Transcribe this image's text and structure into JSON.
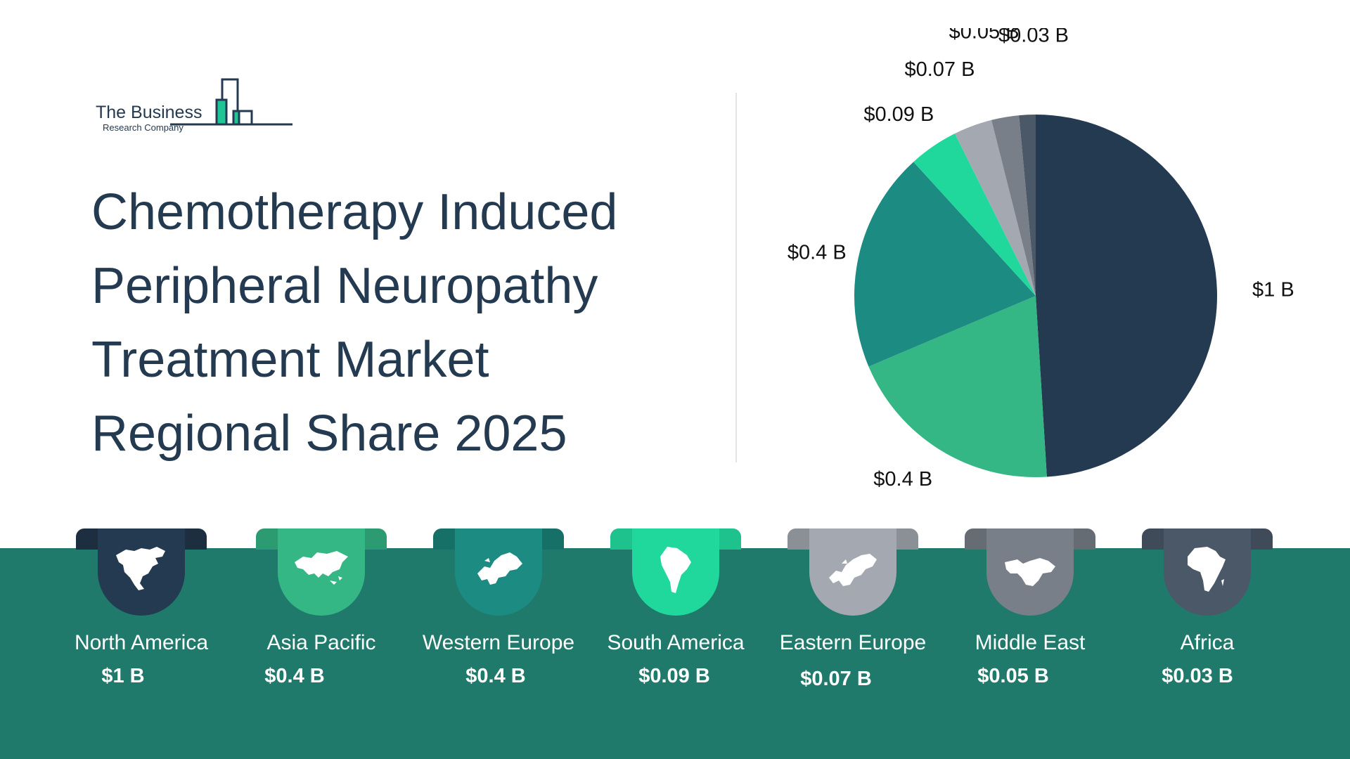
{
  "logo": {
    "line1": "The Business",
    "line2": "Research Company"
  },
  "title_lines": [
    "Chemotherapy Induced",
    "Peripheral Neuropathy",
    "Treatment Market",
    "Regional Share 2025"
  ],
  "colors": {
    "north_america": "#243a50",
    "asia_pacific": "#35b685",
    "western_europe": "#1c8c82",
    "south_america": "#20d89c",
    "eastern_europe": "#a4a9b1",
    "middle_east": "#787f89",
    "africa": "#4a5868",
    "band": "#207a6c"
  },
  "regions": [
    {
      "name": "North America",
      "value": "$1 B",
      "icon": "north-america-map-icon"
    },
    {
      "name": "Asia Pacific",
      "value": "$0.4 B",
      "icon": "asia-map-icon"
    },
    {
      "name": "Western Europe",
      "value": "$0.4 B",
      "icon": "western-europe-map-icon"
    },
    {
      "name": "South America",
      "value": "$0.09 B",
      "icon": "south-america-map-icon"
    },
    {
      "name": "Eastern Europe",
      "value": "$0.07 B",
      "icon": "eastern-europe-map-icon"
    },
    {
      "name": "Middle East",
      "value": "$0.05 B",
      "icon": "middle-east-map-icon"
    },
    {
      "name": "Africa",
      "value": "$0.03 B",
      "icon": "africa-map-icon"
    }
  ],
  "chart_data": {
    "type": "pie",
    "categories": [
      "North America",
      "Asia Pacific",
      "Western Europe",
      "South America",
      "Eastern Europe",
      "Middle East",
      "Africa"
    ],
    "values": [
      1.0,
      0.4,
      0.4,
      0.09,
      0.07,
      0.05,
      0.03
    ],
    "labels": [
      "$1 B",
      "$0.4 B",
      "$0.4 B",
      "$0.09 B",
      "$0.07 B",
      "$0.05 B",
      "$0.03 B"
    ],
    "colors": [
      "#243a50",
      "#35b685",
      "#1c8c82",
      "#20d89c",
      "#a4a9b1",
      "#787f89",
      "#4a5868"
    ],
    "start": "12 o'clock",
    "direction": "clockwise"
  }
}
